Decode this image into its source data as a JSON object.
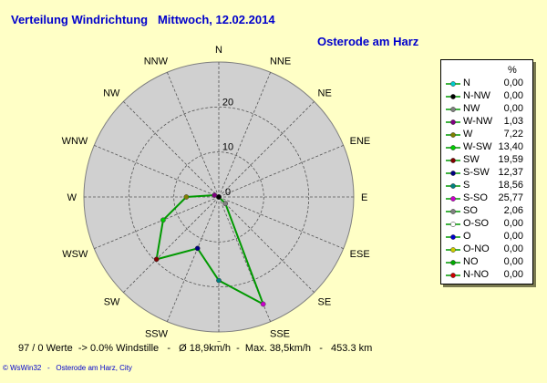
{
  "header": {
    "title": "Verteilung Windrichtung   Mittwoch, 12.02.2014",
    "location": "Osterode am Harz"
  },
  "legend": {
    "unit": "%"
  },
  "stats": {
    "line": "97 / 0 Werte  -> 0.0% Windstille   -   Ø 18,9km/h  -  Max. 38,5km/h   -   453.3 km"
  },
  "footer": {
    "text": "© WsWin32   -   Osterode am Harz, City"
  },
  "chart_data": {
    "type": "radar",
    "directions": [
      "N",
      "NNE",
      "NE",
      "ENE",
      "E",
      "ESE",
      "SE",
      "SSE",
      "S",
      "SSW",
      "SW",
      "WSW",
      "W",
      "WNW",
      "NW",
      "NNW"
    ],
    "radial_ticks": [
      "0",
      "10",
      "20"
    ],
    "rmax": 30,
    "grid": true,
    "line_color": "#009900",
    "grid_color": "#d0d0d0",
    "series": [
      {
        "label": "N",
        "value": "0,00",
        "dir": 0,
        "r": 0.0,
        "marker": "#00cccc"
      },
      {
        "label": "N-NW",
        "value": "0,00",
        "dir": 15,
        "r": 0.0,
        "marker": "#000000"
      },
      {
        "label": "NW",
        "value": "0,00",
        "dir": 14,
        "r": 0.0,
        "marker": "#808080"
      },
      {
        "label": "W-NW",
        "value": "1,03",
        "dir": 13,
        "r": 1.03,
        "marker": "#800080"
      },
      {
        "label": "W",
        "value": "7,22",
        "dir": 12,
        "r": 7.22,
        "marker": "#808000"
      },
      {
        "label": "W-SW",
        "value": "13,40",
        "dir": 11,
        "r": 13.4,
        "marker": "#00cc00"
      },
      {
        "label": "SW",
        "value": "19,59",
        "dir": 10,
        "r": 19.59,
        "marker": "#800000"
      },
      {
        "label": "S-SW",
        "value": "12,37",
        "dir": 9,
        "r": 12.37,
        "marker": "#000080"
      },
      {
        "label": "S",
        "value": "18,56",
        "dir": 8,
        "r": 18.56,
        "marker": "#008080"
      },
      {
        "label": "S-SO",
        "value": "25,77",
        "dir": 7,
        "r": 25.77,
        "marker": "#cc00cc"
      },
      {
        "label": "SO",
        "value": "2,06",
        "dir": 6,
        "r": 2.06,
        "marker": "#808080"
      },
      {
        "label": "O-SO",
        "value": "0,00",
        "dir": 5,
        "r": 0.0,
        "marker": "#ffffff"
      },
      {
        "label": "O",
        "value": "0,00",
        "dir": 4,
        "r": 0.0,
        "marker": "#0000cc"
      },
      {
        "label": "O-NO",
        "value": "0,00",
        "dir": 3,
        "r": 0.0,
        "marker": "#cccc00"
      },
      {
        "label": "NO",
        "value": "0,00",
        "dir": 2,
        "r": 0.0,
        "marker": "#00aa00"
      },
      {
        "label": "N-NO",
        "value": "0,00",
        "dir": 1,
        "r": 0.0,
        "marker": "#cc0000"
      }
    ]
  }
}
